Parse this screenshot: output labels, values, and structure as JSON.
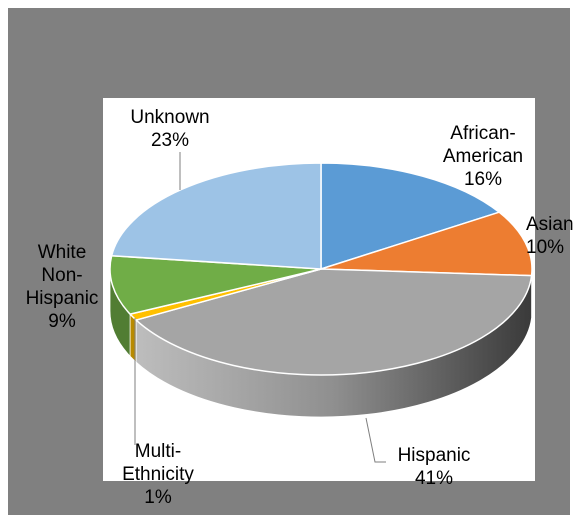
{
  "chart_data": {
    "type": "pie",
    "style": "3d",
    "title": "",
    "legend": "none",
    "slices": [
      {
        "name": "African-American",
        "label_lines": [
          "African-",
          "American"
        ],
        "pct_label": "16%",
        "value": 16,
        "color": "#5B9BD5"
      },
      {
        "name": "Asian",
        "label_lines": [
          "Asian"
        ],
        "pct_label": "10%",
        "value": 10,
        "color": "#ED7D31"
      },
      {
        "name": "Hispanic",
        "label_lines": [
          "Hispanic"
        ],
        "pct_label": "41%",
        "value": 41,
        "color": "#A5A5A5"
      },
      {
        "name": "Multi-Ethnicity",
        "label_lines": [
          "Multi-",
          "Ethnicity"
        ],
        "pct_label": "1%",
        "value": 1,
        "color": "#FFC000"
      },
      {
        "name": "White Non-Hispanic",
        "label_lines": [
          "White",
          "Non-",
          "Hispanic"
        ],
        "pct_label": "9%",
        "value": 9,
        "color": "#70AD47"
      },
      {
        "name": "Unknown",
        "label_lines": [
          "Unknown"
        ],
        "pct_label": "23%",
        "value": 23,
        "color": "#9DC3E6"
      }
    ]
  }
}
